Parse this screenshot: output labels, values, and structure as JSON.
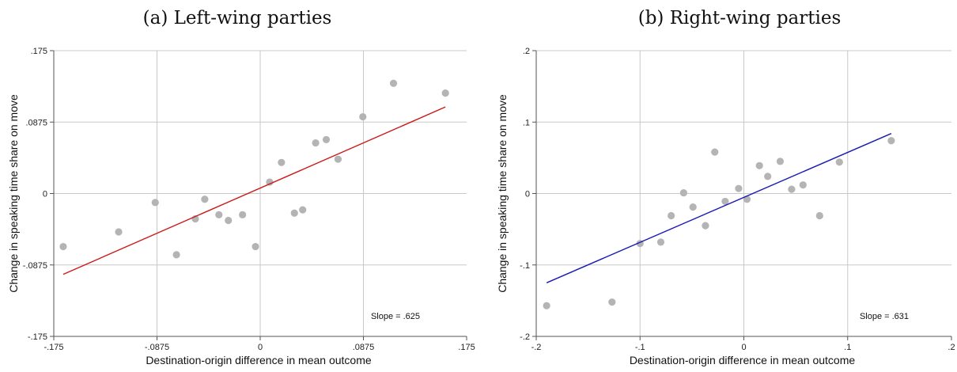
{
  "chart_data": [
    {
      "type": "scatter",
      "title": "(a) Left-wing parties",
      "xlabel": "Destination-origin difference in mean outcome",
      "ylabel": "Change in speaking time share on move",
      "xlim": [
        -0.175,
        0.175
      ],
      "ylim": [
        -0.175,
        0.175
      ],
      "xticks": [
        -0.175,
        -0.0875,
        0,
        0.0875,
        0.175
      ],
      "xtick_labels": [
        "-.175",
        "-.0875",
        "0",
        ".0875",
        ".175"
      ],
      "yticks": [
        -0.175,
        -0.0875,
        0,
        0.0875,
        0.175
      ],
      "ytick_labels": [
        "-.175",
        "-.0875",
        "0",
        ".0875",
        ".175"
      ],
      "grid": true,
      "points": {
        "x": [
          -0.167,
          -0.12,
          -0.089,
          -0.071,
          -0.055,
          -0.047,
          -0.035,
          -0.027,
          -0.015,
          -0.004,
          0.008,
          0.018,
          0.029,
          0.036,
          0.047,
          0.056,
          0.066,
          0.087,
          0.113,
          0.157
        ],
        "y": [
          -0.065,
          -0.047,
          -0.011,
          -0.075,
          -0.031,
          -0.007,
          -0.026,
          -0.033,
          -0.026,
          -0.065,
          0.014,
          0.038,
          -0.024,
          -0.02,
          0.062,
          0.066,
          0.042,
          0.094,
          0.135,
          0.123
        ]
      },
      "fit_line": {
        "x": [
          -0.167,
          0.157
        ],
        "y": [
          -0.099,
          0.106
        ],
        "color": "#cc1a1a"
      },
      "annotation": "Slope = .625",
      "point_color": "#b4b4b4"
    },
    {
      "type": "scatter",
      "title": "(b) Right-wing parties",
      "xlabel": "Destination-origin difference in mean outcome",
      "ylabel": "Change in speaking time share on move",
      "xlim": [
        -0.2,
        0.2
      ],
      "ylim": [
        -0.2,
        0.2
      ],
      "xticks": [
        -0.2,
        -0.1,
        0,
        0.1,
        0.2
      ],
      "xtick_labels": [
        "-.2",
        "-.1",
        "0",
        ".1",
        ".2"
      ],
      "yticks": [
        -0.2,
        -0.1,
        0,
        0.1,
        0.2
      ],
      "ytick_labels": [
        "-.2",
        "-.1",
        "0",
        ".1",
        ".2"
      ],
      "grid": true,
      "points": {
        "x": [
          -0.19,
          -0.127,
          -0.1,
          -0.08,
          -0.07,
          -0.058,
          -0.049,
          -0.037,
          -0.028,
          -0.018,
          -0.005,
          0.003,
          0.015,
          0.023,
          0.035,
          0.046,
          0.057,
          0.073,
          0.092,
          0.142
        ],
        "y": [
          -0.157,
          -0.152,
          -0.07,
          -0.068,
          -0.031,
          0.001,
          -0.019,
          -0.045,
          0.058,
          -0.011,
          0.007,
          -0.008,
          0.039,
          0.024,
          0.045,
          0.006,
          0.012,
          -0.031,
          0.044,
          0.074
        ]
      },
      "fit_line": {
        "x": [
          -0.19,
          0.142
        ],
        "y": [
          -0.125,
          0.084
        ],
        "color": "#1a1ab4"
      },
      "annotation": "Slope = .631",
      "point_color": "#b4b4b4"
    }
  ]
}
